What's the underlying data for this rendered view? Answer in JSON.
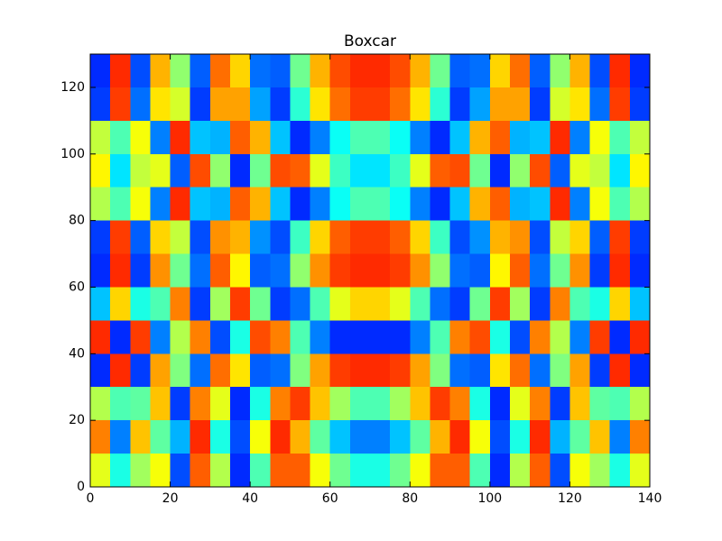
{
  "chart_data": {
    "type": "heatmap",
    "title": "Boxcar",
    "colormap": "jet",
    "clim": [
      20,
      80
    ],
    "x": [
      2.5,
      7.5,
      12.5,
      17.5,
      22.5,
      27.5,
      32.5,
      37.5,
      42.5,
      47.5,
      52.5,
      57.5,
      62.5,
      67.5,
      72.5,
      77.5,
      82.5,
      87.5,
      92.5,
      97.5,
      102.5,
      107.5,
      112.5,
      117.5,
      122.5,
      127.5,
      132.5,
      137.5
    ],
    "y": [
      5,
      15,
      25,
      35,
      45,
      55,
      65,
      75,
      85,
      95,
      105,
      115,
      125
    ],
    "values": [
      [
        56,
        44,
        52,
        57,
        32,
        67,
        53,
        30,
        47,
        67,
        67,
        57,
        49,
        44,
        44,
        49,
        57,
        67,
        67,
        47,
        30,
        53,
        67,
        32,
        57,
        52,
        44,
        56
      ],
      [
        65,
        35,
        61,
        48,
        38,
        70,
        44,
        32,
        57,
        70,
        62,
        48,
        39,
        35,
        35,
        39,
        48,
        62,
        70,
        57,
        32,
        44,
        70,
        38,
        48,
        61,
        35,
        65
      ],
      [
        53,
        47,
        48,
        61,
        31,
        65,
        56,
        30,
        44,
        65,
        69,
        61,
        52,
        47,
        47,
        52,
        61,
        69,
        65,
        44,
        30,
        56,
        65,
        31,
        61,
        48,
        47,
        53
      ],
      [
        30,
        70,
        31,
        63,
        50,
        34,
        66,
        59,
        33,
        34,
        50,
        63,
        69,
        70,
        70,
        69,
        63,
        50,
        34,
        33,
        59,
        66,
        34,
        50,
        63,
        31,
        70,
        30
      ],
      [
        70,
        30,
        69,
        35,
        53,
        65,
        32,
        44,
        68,
        65,
        47,
        35,
        30,
        30,
        30,
        30,
        35,
        47,
        65,
        68,
        44,
        32,
        65,
        53,
        35,
        69,
        30,
        70
      ],
      [
        39,
        60,
        44,
        47,
        65,
        31,
        52,
        69,
        49,
        31,
        34,
        47,
        56,
        60,
        60,
        56,
        47,
        34,
        31,
        49,
        69,
        52,
        31,
        65,
        47,
        44,
        60,
        39
      ],
      [
        30,
        70,
        31,
        64,
        49,
        34,
        67,
        58,
        33,
        34,
        51,
        64,
        69,
        70,
        70,
        69,
        64,
        51,
        34,
        33,
        58,
        67,
        34,
        49,
        64,
        31,
        70,
        30
      ],
      [
        31,
        69,
        33,
        60,
        54,
        32,
        64,
        62,
        36,
        32,
        46,
        60,
        67,
        69,
        69,
        67,
        60,
        46,
        32,
        36,
        62,
        64,
        32,
        54,
        60,
        33,
        69,
        31
      ],
      [
        53,
        47,
        57,
        35,
        70,
        39,
        38,
        67,
        62,
        39,
        30,
        35,
        43,
        47,
        47,
        43,
        35,
        30,
        39,
        62,
        67,
        38,
        39,
        70,
        35,
        57,
        47,
        53
      ],
      [
        58,
        41,
        54,
        56,
        33,
        68,
        51,
        30,
        49,
        68,
        67,
        56,
        46,
        41,
        41,
        46,
        56,
        67,
        68,
        49,
        30,
        51,
        68,
        33,
        56,
        54,
        41,
        58
      ],
      [
        54,
        47,
        57,
        35,
        70,
        39,
        38,
        67,
        62,
        39,
        30,
        35,
        43,
        47,
        47,
        43,
        35,
        30,
        39,
        62,
        67,
        38,
        39,
        70,
        35,
        57,
        47,
        54
      ],
      [
        31,
        69,
        34,
        59,
        55,
        31,
        63,
        63,
        37,
        31,
        45,
        59,
        66,
        69,
        69,
        66,
        59,
        45,
        31,
        37,
        63,
        63,
        31,
        55,
        59,
        34,
        69,
        31
      ],
      [
        30,
        70,
        32,
        62,
        51,
        33,
        66,
        60,
        34,
        33,
        49,
        62,
        68,
        70,
        70,
        68,
        62,
        49,
        33,
        34,
        60,
        66,
        33,
        51,
        62,
        32,
        70,
        30
      ]
    ],
    "xlim": [
      0,
      140
    ],
    "ylim": [
      0,
      130
    ],
    "xticks": [
      0,
      20,
      40,
      60,
      80,
      100,
      120,
      140
    ],
    "yticks": [
      0,
      20,
      40,
      60,
      80,
      100,
      120
    ]
  }
}
